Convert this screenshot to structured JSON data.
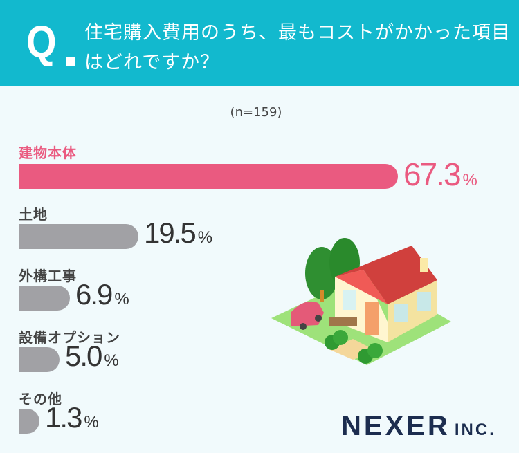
{
  "header": {
    "q": "Q",
    "title": "住宅購入費用のうち、最もコストがかかった項目はどれですか？"
  },
  "colors": {
    "header": "#12b9ce",
    "highlight": "#ea5a80",
    "bar": "#a1a1a5"
  },
  "chart_data": {
    "type": "bar",
    "orientation": "horizontal",
    "title": "住宅購入費用のうち、最もコストがかかった項目はどれですか？",
    "sample": "(n=159)",
    "categories": [
      "建物本体",
      "土地",
      "外構工事",
      "設備オプション",
      "その他"
    ],
    "values": [
      67.3,
      19.5,
      6.9,
      5.0,
      1.3
    ],
    "value_labels": [
      "67.3",
      "19.5",
      "6.9",
      "5.0",
      "1.3"
    ],
    "unit": "%",
    "highlight_index": 0
  },
  "logo": {
    "name": "NEXER",
    "suffix": "INC."
  }
}
